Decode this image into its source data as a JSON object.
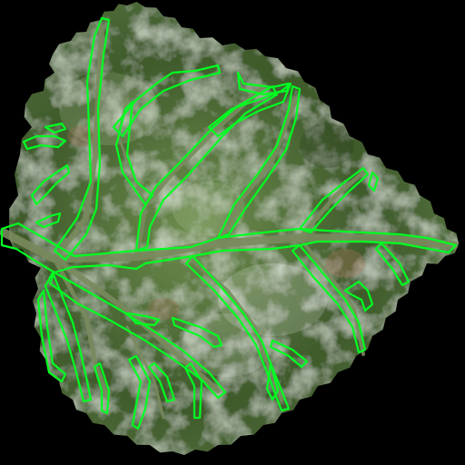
{
  "image": {
    "subject": "leaf-with-vein-segmentation-overlay",
    "colors": {
      "background": "#000000",
      "leaf_dark": "#3f5a2b",
      "leaf_mid": "#6f8e4f",
      "leaf_light": "#b8c7a3",
      "vein_fill": "#7a8a5e",
      "outline": "#00ff22",
      "blush": "#a7735a"
    }
  }
}
